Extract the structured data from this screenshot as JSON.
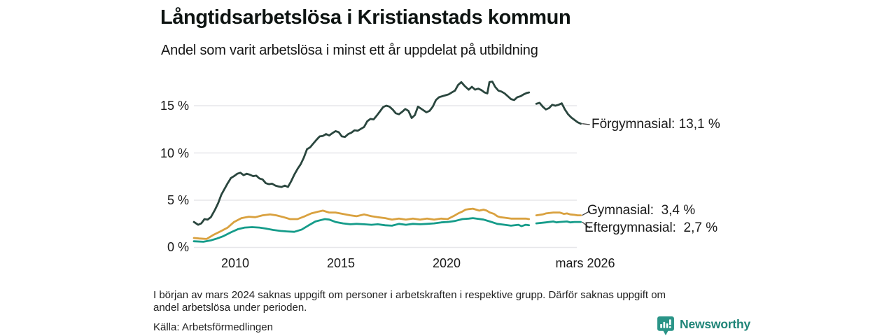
{
  "chart_data": {
    "type": "line",
    "title": "Långtidsarbetslösa i Kristianstads kommun",
    "subtitle": "Andel som varit arbetslösa i minst ett år uppdelat på utbildning",
    "grid": "horizontal",
    "legend_position": "end-of-line-annotations",
    "x_axis": {
      "unit": "år",
      "range": [
        2008.0,
        2026.3
      ],
      "ticks": [
        {
          "label": "2010",
          "year": 2010
        },
        {
          "label": "2015",
          "year": 2015
        },
        {
          "label": "2020",
          "year": 2020
        },
        {
          "label": "mars 2026",
          "year": 2026.17
        }
      ]
    },
    "y_axis": {
      "unit": "%",
      "range": [
        0,
        18
      ],
      "ticks": [
        {
          "label": "0 %",
          "value": 0
        },
        {
          "label": "5 %",
          "value": 5
        },
        {
          "label": "10 %",
          "value": 10
        },
        {
          "label": "15 %",
          "value": 15
        }
      ]
    },
    "data_gap": {
      "from": 2023.85,
      "to": 2024.2
    },
    "series": [
      {
        "name": "Förgymnasial",
        "color": "#2a463e",
        "end_value": 13.1,
        "label_text": "Förgymnasial: 13,1 %",
        "segments": [
          [
            [
              2008.0,
              2.7
            ],
            [
              2008.2,
              2.4
            ],
            [
              2008.35,
              2.55
            ],
            [
              2008.5,
              3.0
            ],
            [
              2008.65,
              2.95
            ],
            [
              2008.8,
              3.2
            ],
            [
              2009.0,
              4.0
            ],
            [
              2009.15,
              4.7
            ],
            [
              2009.3,
              5.6
            ],
            [
              2009.45,
              6.2
            ],
            [
              2009.6,
              6.8
            ],
            [
              2009.75,
              7.35
            ],
            [
              2009.9,
              7.55
            ],
            [
              2010.05,
              7.8
            ],
            [
              2010.2,
              7.9
            ],
            [
              2010.35,
              7.65
            ],
            [
              2010.5,
              7.8
            ],
            [
              2010.65,
              7.7
            ],
            [
              2010.8,
              7.55
            ],
            [
              2010.95,
              7.6
            ],
            [
              2011.1,
              7.3
            ],
            [
              2011.25,
              7.2
            ],
            [
              2011.4,
              6.8
            ],
            [
              2011.55,
              6.7
            ],
            [
              2011.7,
              6.75
            ],
            [
              2011.85,
              6.55
            ],
            [
              2012.0,
              6.45
            ],
            [
              2012.15,
              6.4
            ],
            [
              2012.3,
              6.55
            ],
            [
              2012.45,
              6.4
            ],
            [
              2012.6,
              7.0
            ],
            [
              2012.75,
              7.7
            ],
            [
              2012.9,
              8.3
            ],
            [
              2013.05,
              8.8
            ],
            [
              2013.2,
              9.5
            ],
            [
              2013.35,
              10.4
            ],
            [
              2013.5,
              10.6
            ],
            [
              2013.65,
              11.0
            ],
            [
              2013.8,
              11.4
            ],
            [
              2013.95,
              11.75
            ],
            [
              2014.1,
              11.8
            ],
            [
              2014.25,
              12.0
            ],
            [
              2014.4,
              11.85
            ],
            [
              2014.55,
              12.1
            ],
            [
              2014.7,
              12.3
            ],
            [
              2014.85,
              12.2
            ],
            [
              2015.0,
              11.75
            ],
            [
              2015.15,
              11.7
            ],
            [
              2015.3,
              12.0
            ],
            [
              2015.45,
              12.15
            ],
            [
              2015.6,
              12.4
            ],
            [
              2015.75,
              12.35
            ],
            [
              2015.9,
              12.55
            ],
            [
              2016.05,
              12.75
            ],
            [
              2016.2,
              13.35
            ],
            [
              2016.35,
              13.6
            ],
            [
              2016.5,
              13.55
            ],
            [
              2016.65,
              13.95
            ],
            [
              2016.8,
              14.4
            ],
            [
              2016.95,
              14.85
            ],
            [
              2017.1,
              15.0
            ],
            [
              2017.25,
              14.9
            ],
            [
              2017.4,
              14.6
            ],
            [
              2017.55,
              14.2
            ],
            [
              2017.7,
              14.1
            ],
            [
              2017.85,
              14.35
            ],
            [
              2018.0,
              14.65
            ],
            [
              2018.15,
              14.45
            ],
            [
              2018.3,
              13.7
            ],
            [
              2018.45,
              14.0
            ],
            [
              2018.6,
              14.9
            ],
            [
              2018.8,
              14.6
            ],
            [
              2019.0,
              14.3
            ],
            [
              2019.15,
              14.45
            ],
            [
              2019.3,
              14.9
            ],
            [
              2019.45,
              15.6
            ],
            [
              2019.6,
              15.9
            ],
            [
              2019.75,
              16.0
            ],
            [
              2019.9,
              16.1
            ],
            [
              2020.05,
              16.2
            ],
            [
              2020.2,
              16.4
            ],
            [
              2020.35,
              16.6
            ],
            [
              2020.5,
              17.2
            ],
            [
              2020.65,
              17.5
            ],
            [
              2020.8,
              17.1
            ],
            [
              2021.0,
              16.7
            ],
            [
              2021.15,
              17.0
            ],
            [
              2021.3,
              16.7
            ],
            [
              2021.45,
              16.8
            ],
            [
              2021.6,
              16.65
            ],
            [
              2021.75,
              16.4
            ],
            [
              2021.88,
              16.3
            ],
            [
              2021.98,
              17.5
            ],
            [
              2022.12,
              17.55
            ],
            [
              2022.25,
              17.0
            ],
            [
              2022.4,
              16.6
            ],
            [
              2022.55,
              16.5
            ],
            [
              2022.7,
              16.3
            ],
            [
              2022.85,
              16.0
            ],
            [
              2023.0,
              15.7
            ],
            [
              2023.15,
              15.6
            ],
            [
              2023.3,
              15.9
            ],
            [
              2023.45,
              16.0
            ],
            [
              2023.6,
              16.2
            ],
            [
              2023.75,
              16.35
            ],
            [
              2023.85,
              16.4
            ]
          ],
          [
            [
              2024.2,
              15.2
            ],
            [
              2024.35,
              15.3
            ],
            [
              2024.5,
              14.9
            ],
            [
              2024.65,
              14.6
            ],
            [
              2024.8,
              14.75
            ],
            [
              2024.95,
              15.1
            ],
            [
              2025.1,
              15.0
            ],
            [
              2025.25,
              15.1
            ],
            [
              2025.4,
              15.25
            ],
            [
              2025.55,
              14.6
            ],
            [
              2025.7,
              14.1
            ],
            [
              2025.85,
              13.75
            ],
            [
              2026.0,
              13.5
            ],
            [
              2026.15,
              13.25
            ],
            [
              2026.3,
              13.1
            ]
          ]
        ]
      },
      {
        "name": "Gymnasial",
        "color": "#d9a13f",
        "end_value": 3.4,
        "label_text": "Gymnasial:  3,4 %",
        "segments": [
          [
            [
              2008.0,
              1.0
            ],
            [
              2008.25,
              0.95
            ],
            [
              2008.6,
              0.9
            ],
            [
              2008.9,
              1.3
            ],
            [
              2009.25,
              1.7
            ],
            [
              2009.6,
              2.1
            ],
            [
              2009.9,
              2.7
            ],
            [
              2010.25,
              3.1
            ],
            [
              2010.6,
              3.25
            ],
            [
              2010.9,
              3.2
            ],
            [
              2011.25,
              3.4
            ],
            [
              2011.6,
              3.5
            ],
            [
              2011.9,
              3.4
            ],
            [
              2012.25,
              3.2
            ],
            [
              2012.55,
              3.0
            ],
            [
              2012.9,
              3.0
            ],
            [
              2013.25,
              3.3
            ],
            [
              2013.55,
              3.6
            ],
            [
              2013.9,
              3.8
            ],
            [
              2014.1,
              3.9
            ],
            [
              2014.4,
              3.7
            ],
            [
              2014.7,
              3.7
            ],
            [
              2015.05,
              3.55
            ],
            [
              2015.4,
              3.4
            ],
            [
              2015.7,
              3.3
            ],
            [
              2016.05,
              3.5
            ],
            [
              2016.4,
              3.3
            ],
            [
              2016.7,
              3.2
            ],
            [
              2017.05,
              3.1
            ],
            [
              2017.37,
              2.95
            ],
            [
              2017.7,
              3.05
            ],
            [
              2018.03,
              2.95
            ],
            [
              2018.36,
              3.05
            ],
            [
              2018.7,
              2.95
            ],
            [
              2019.03,
              3.05
            ],
            [
              2019.36,
              2.95
            ],
            [
              2019.7,
              3.05
            ],
            [
              2020.0,
              3.0
            ],
            [
              2020.35,
              3.4
            ],
            [
              2020.5,
              3.6
            ],
            [
              2020.7,
              3.8
            ],
            [
              2020.85,
              4.0
            ],
            [
              2021.0,
              4.05
            ],
            [
              2021.2,
              4.1
            ],
            [
              2021.35,
              4.0
            ],
            [
              2021.5,
              3.9
            ],
            [
              2021.7,
              4.0
            ],
            [
              2021.85,
              3.9
            ],
            [
              2022.0,
              3.7
            ],
            [
              2022.2,
              3.55
            ],
            [
              2022.35,
              3.3
            ],
            [
              2022.5,
              3.2
            ],
            [
              2022.7,
              3.15
            ],
            [
              2023.0,
              3.05
            ],
            [
              2023.35,
              3.05
            ],
            [
              2023.7,
              3.05
            ],
            [
              2023.85,
              3.0
            ]
          ],
          [
            [
              2024.2,
              3.4
            ],
            [
              2024.5,
              3.5
            ],
            [
              2024.65,
              3.6
            ],
            [
              2025.0,
              3.7
            ],
            [
              2025.3,
              3.7
            ],
            [
              2025.5,
              3.55
            ],
            [
              2025.65,
              3.6
            ],
            [
              2025.8,
              3.5
            ],
            [
              2026.0,
              3.45
            ],
            [
              2026.15,
              3.4
            ],
            [
              2026.3,
              3.4
            ]
          ]
        ]
      },
      {
        "name": "Eftergymnasial",
        "color": "#169c8a",
        "end_value": 2.7,
        "label_text": "Eftergymnasial:  2,7 %",
        "segments": [
          [
            [
              2008.0,
              0.65
            ],
            [
              2008.45,
              0.6
            ],
            [
              2008.8,
              0.75
            ],
            [
              2009.1,
              0.95
            ],
            [
              2009.4,
              1.2
            ],
            [
              2009.75,
              1.6
            ],
            [
              2010.1,
              1.95
            ],
            [
              2010.4,
              2.1
            ],
            [
              2010.75,
              2.15
            ],
            [
              2011.1,
              2.1
            ],
            [
              2011.4,
              2.0
            ],
            [
              2011.75,
              1.85
            ],
            [
              2012.1,
              1.75
            ],
            [
              2012.4,
              1.7
            ],
            [
              2012.75,
              1.65
            ],
            [
              2013.1,
              1.9
            ],
            [
              2013.4,
              2.3
            ],
            [
              2013.75,
              2.75
            ],
            [
              2014.1,
              2.95
            ],
            [
              2014.2,
              3.0
            ],
            [
              2014.4,
              2.95
            ],
            [
              2014.7,
              2.7
            ],
            [
              2015.05,
              2.55
            ],
            [
              2015.4,
              2.45
            ],
            [
              2015.7,
              2.5
            ],
            [
              2016.05,
              2.45
            ],
            [
              2016.4,
              2.4
            ],
            [
              2016.7,
              2.45
            ],
            [
              2017.05,
              2.35
            ],
            [
              2017.37,
              2.3
            ],
            [
              2017.7,
              2.5
            ],
            [
              2018.03,
              2.4
            ],
            [
              2018.36,
              2.5
            ],
            [
              2018.7,
              2.45
            ],
            [
              2019.03,
              2.5
            ],
            [
              2019.36,
              2.55
            ],
            [
              2019.7,
              2.65
            ],
            [
              2020.0,
              2.7
            ],
            [
              2020.35,
              2.8
            ],
            [
              2020.7,
              3.0
            ],
            [
              2021.0,
              3.05
            ],
            [
              2021.2,
              3.1
            ],
            [
              2021.35,
              3.05
            ],
            [
              2021.7,
              2.95
            ],
            [
              2022.0,
              2.75
            ],
            [
              2022.35,
              2.5
            ],
            [
              2022.7,
              2.4
            ],
            [
              2023.0,
              2.3
            ],
            [
              2023.35,
              2.4
            ],
            [
              2023.5,
              2.25
            ],
            [
              2023.7,
              2.4
            ],
            [
              2023.85,
              2.35
            ]
          ],
          [
            [
              2024.2,
              2.55
            ],
            [
              2024.65,
              2.65
            ],
            [
              2025.0,
              2.75
            ],
            [
              2025.15,
              2.65
            ],
            [
              2025.3,
              2.7
            ],
            [
              2025.65,
              2.75
            ],
            [
              2025.8,
              2.65
            ],
            [
              2026.0,
              2.7
            ],
            [
              2026.3,
              2.7
            ]
          ]
        ]
      }
    ],
    "colors": {
      "grid": "#e7e7ea",
      "connector": "#3c3c3c"
    }
  },
  "footer": {
    "note_line1": "I början av mars 2024 saknas uppgift om personer i arbetskraften i respektive grupp. Därför saknas uppgift om",
    "note_line2": "andel arbetslösa under perioden.",
    "source": "Källa: Arbetsförmedlingen"
  },
  "branding": {
    "name": "Newsworthy",
    "text_color": "#1f8578",
    "icon_color": "#2a9487",
    "icon": "newsworthy-bar-chart-speech-bubble-icon"
  }
}
